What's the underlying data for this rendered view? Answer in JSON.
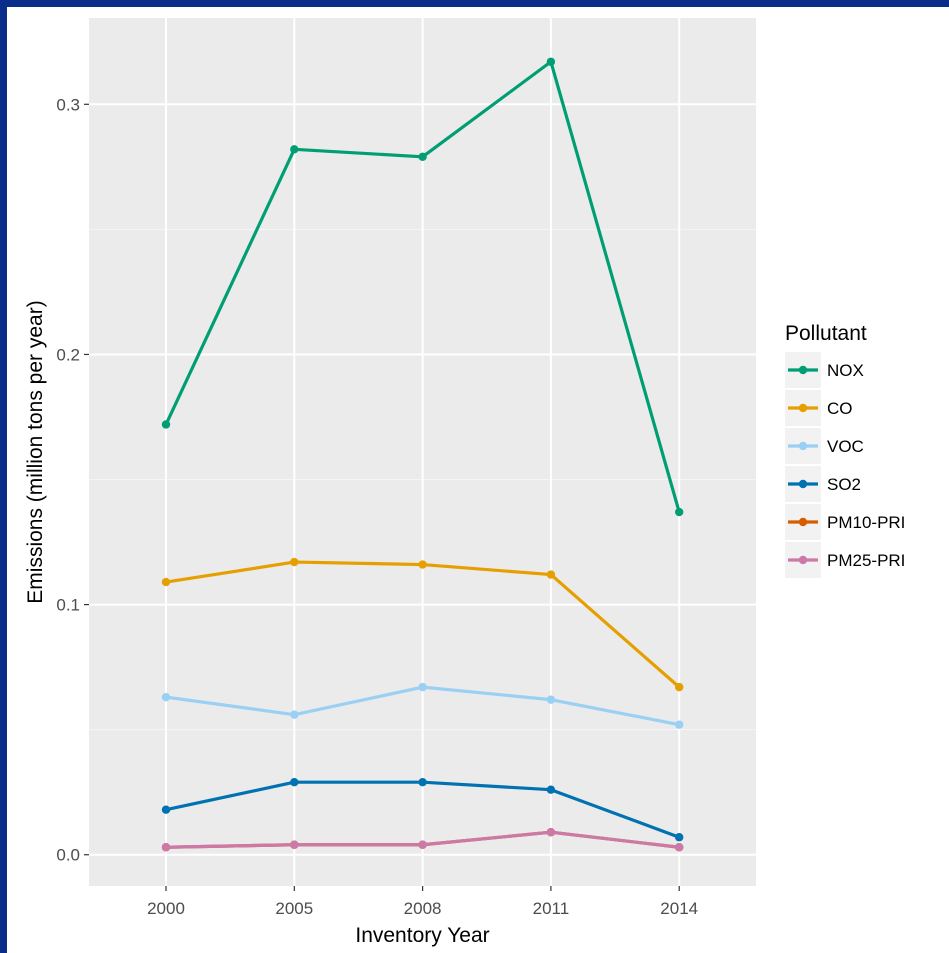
{
  "chart_data": {
    "type": "line",
    "xlabel": "Inventory Year",
    "ylabel": "Emissions (million tons per year)",
    "categories": [
      "2000",
      "2005",
      "2008",
      "2011",
      "2014"
    ],
    "ylim": [
      -0.0125,
      0.3345
    ],
    "yticks": [
      0.0,
      0.1,
      0.2,
      0.3
    ],
    "ytick_labels": [
      "0.0",
      "0.1",
      "0.2",
      "0.3"
    ],
    "grid": true,
    "legend_title": "Pollutant",
    "legend_position": "right",
    "series": [
      {
        "name": "NOX",
        "color": "#009e73",
        "values": [
          0.172,
          0.282,
          0.279,
          0.317,
          0.137
        ]
      },
      {
        "name": "CO",
        "color": "#e69f00",
        "values": [
          0.109,
          0.117,
          0.116,
          0.112,
          0.067
        ]
      },
      {
        "name": "VOC",
        "color": "#9ad0f3",
        "values": [
          0.063,
          0.056,
          0.067,
          0.062,
          0.052
        ]
      },
      {
        "name": "SO2",
        "color": "#0072b2",
        "values": [
          0.018,
          0.029,
          0.029,
          0.026,
          0.007
        ]
      },
      {
        "name": "PM10-PRI",
        "color": "#d55e00",
        "values": [
          0.003,
          0.004,
          0.004,
          0.009,
          0.003
        ]
      },
      {
        "name": "PM25-PRI",
        "color": "#cc79a7",
        "values": [
          0.003,
          0.004,
          0.004,
          0.009,
          0.003
        ]
      }
    ]
  }
}
